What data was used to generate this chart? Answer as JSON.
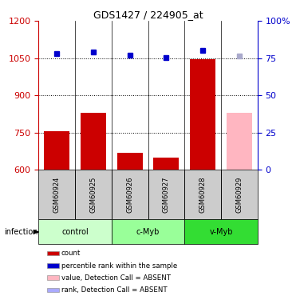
{
  "title": "GDS1427 / 224905_at",
  "samples": [
    "GSM60924",
    "GSM60925",
    "GSM60926",
    "GSM60927",
    "GSM60928",
    "GSM60929"
  ],
  "groups": [
    {
      "name": "control",
      "color": "#ccffcc",
      "samples": [
        0,
        1
      ]
    },
    {
      "name": "c-Myb",
      "color": "#99ff99",
      "samples": [
        2,
        3
      ]
    },
    {
      "name": "v-Myb",
      "color": "#33dd33",
      "samples": [
        4,
        5
      ]
    }
  ],
  "bar_values": [
    755,
    830,
    670,
    650,
    1047,
    null
  ],
  "absent_bar": [
    null,
    null,
    null,
    null,
    null,
    830
  ],
  "dot_values": [
    1068,
    1075,
    1063,
    1052,
    1083,
    null
  ],
  "absent_dot": [
    null,
    null,
    null,
    null,
    null,
    1060
  ],
  "ylim_left": [
    600,
    1200
  ],
  "ylim_right": [
    0,
    100
  ],
  "yticks_left": [
    600,
    750,
    900,
    1050,
    1200
  ],
  "yticks_right": [
    0,
    25,
    50,
    75,
    100
  ],
  "right_tick_labels": [
    "0",
    "25",
    "50",
    "75",
    "100%"
  ],
  "left_axis_color": "#cc0000",
  "right_axis_color": "#0000cc",
  "dotted_lines": [
    750,
    900,
    1050
  ],
  "infection_label": "infection",
  "legend_items": [
    {
      "color": "#cc0000",
      "label": "count",
      "square": true
    },
    {
      "color": "#0000cc",
      "label": "percentile rank within the sample",
      "square": true
    },
    {
      "color": "#ffb6c1",
      "label": "value, Detection Call = ABSENT",
      "square": true
    },
    {
      "color": "#aaaaff",
      "label": "rank, Detection Call = ABSENT",
      "square": true
    }
  ],
  "bar_width": 0.7,
  "figsize": [
    3.71,
    3.75
  ],
  "dpi": 100,
  "sample_box_color": "#cccccc",
  "bar_color": "#cc0000",
  "absent_bar_color": "#ffb6c1",
  "dot_color": "#0000cc",
  "absent_dot_color": "#aaaacc"
}
